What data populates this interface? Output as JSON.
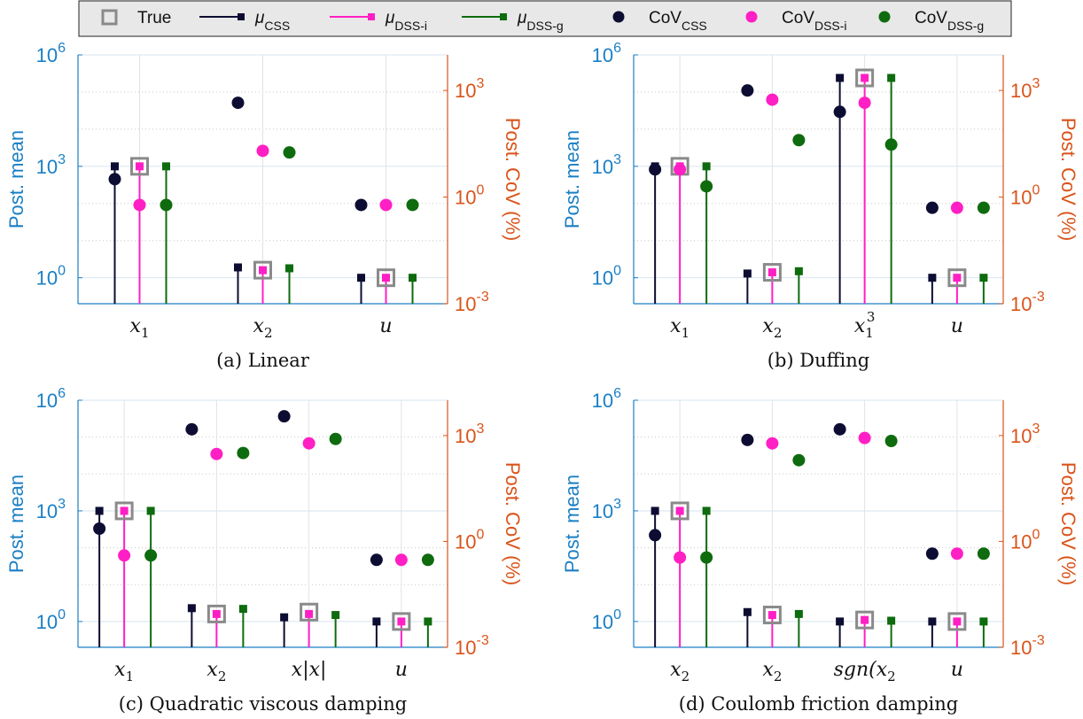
{
  "colors": {
    "left_axis": "#1a7fc4",
    "right_axis": "#d9541a",
    "css": "#0d0d33",
    "dss_i": "#ff1fc4",
    "dss_g": "#0e6b0e",
    "true_marker": "#8a8a8a",
    "legend_bg": "#e8e8e8"
  },
  "legend": {
    "entries": [
      {
        "key": "true",
        "label": "True",
        "sub": ""
      },
      {
        "key": "mu_css",
        "label": "μ",
        "sub": "CSS"
      },
      {
        "key": "mu_dssi",
        "label": "μ",
        "sub": "DSS-i"
      },
      {
        "key": "mu_dssg",
        "label": "μ",
        "sub": "DSS-g"
      },
      {
        "key": "cov_css",
        "label": "CoV",
        "sub": "CSS"
      },
      {
        "key": "cov_dssi",
        "label": "CoV",
        "sub": "DSS-i"
      },
      {
        "key": "cov_dssg",
        "label": "CoV",
        "sub": "DSS-g"
      }
    ]
  },
  "axis_text": {
    "ylabel_left": "Post. mean",
    "ylabel_right": "Post. CoV (%)",
    "left_ticks": [
      {
        "base": "10",
        "exp": "0",
        "value": 1
      },
      {
        "base": "10",
        "exp": "3",
        "value": 1000
      },
      {
        "base": "10",
        "exp": "6",
        "value": 1000000
      }
    ],
    "right_ticks": [
      {
        "base": "10",
        "exp": "-3",
        "value": 0.001
      },
      {
        "base": "10",
        "exp": "0",
        "value": 1
      },
      {
        "base": "10",
        "exp": "3",
        "value": 1000
      }
    ]
  },
  "chart_data": [
    {
      "type": "stem-scatter",
      "title": "(a) Linear",
      "categories": [
        {
          "base": "x",
          "sub": "1",
          "sup": ""
        },
        {
          "base": "x",
          "sub": "2",
          "sup": ""
        },
        {
          "base": "u",
          "sub": "",
          "sup": ""
        }
      ],
      "ylim_left": [
        0.2,
        1000000
      ],
      "ylim_right": [
        0.001,
        10000
      ],
      "yscale": "log",
      "true_values": [
        1000,
        1.6,
        1
      ],
      "mean": {
        "CSS": [
          1000,
          1.9,
          1
        ],
        "DSS-i": [
          1000,
          1.6,
          1
        ],
        "DSS-g": [
          1000,
          1.8,
          1
        ]
      },
      "cov": {
        "CSS": [
          3.2,
          450,
          0.6
        ],
        "DSS-i": [
          0.6,
          20,
          0.6
        ],
        "DSS-g": [
          0.6,
          18,
          0.6
        ]
      }
    },
    {
      "type": "stem-scatter",
      "title": "(b) Duffing",
      "categories": [
        {
          "base": "x",
          "sub": "1",
          "sup": ""
        },
        {
          "base": "x",
          "sub": "2",
          "sup": ""
        },
        {
          "base": "x",
          "sub": "1",
          "sup": "3"
        },
        {
          "base": "u",
          "sub": "",
          "sup": ""
        }
      ],
      "ylim_left": [
        0.2,
        1000000
      ],
      "ylim_right": [
        0.001,
        10000
      ],
      "yscale": "log",
      "true_values": [
        1000,
        1.4,
        240000,
        1
      ],
      "mean": {
        "CSS": [
          1000,
          1.3,
          240000,
          1
        ],
        "DSS-i": [
          1000,
          1.4,
          240000,
          1
        ],
        "DSS-g": [
          1000,
          1.5,
          240000,
          1
        ]
      },
      "cov": {
        "CSS": [
          6,
          1000,
          250,
          0.5
        ],
        "DSS-i": [
          6,
          550,
          450,
          0.5
        ],
        "DSS-g": [
          2,
          40,
          30,
          0.5
        ]
      }
    },
    {
      "type": "stem-scatter",
      "title": "(c) Quadratic viscous damping",
      "categories": [
        {
          "base": "x",
          "sub": "1",
          "sup": ""
        },
        {
          "base": "x",
          "sub": "2",
          "sup": ""
        },
        {
          "base": "x|x|",
          "sub": "",
          "sup": ""
        },
        {
          "base": "u",
          "sub": "",
          "sup": ""
        }
      ],
      "ylim_left": [
        0.2,
        1000000
      ],
      "ylim_right": [
        0.001,
        10000
      ],
      "yscale": "log",
      "true_values": [
        1000,
        1.6,
        1.8,
        1
      ],
      "mean": {
        "CSS": [
          1000,
          2.3,
          1.3,
          1
        ],
        "DSS-i": [
          1000,
          1.6,
          1.6,
          1
        ],
        "DSS-g": [
          1000,
          2.2,
          1.5,
          1
        ]
      },
      "cov": {
        "CSS": [
          2.3,
          1500,
          3500,
          0.3
        ],
        "DSS-i": [
          0.4,
          300,
          600,
          0.3
        ],
        "DSS-g": [
          0.4,
          320,
          800,
          0.3
        ]
      }
    },
    {
      "type": "stem-scatter",
      "title": "(d) Coulomb friction damping",
      "categories": [
        {
          "base": "x",
          "sub": "2",
          "sup": ""
        },
        {
          "base": "x",
          "sub": "2",
          "sup": ""
        },
        {
          "base": "sgn(x",
          "sub": "2",
          "sup": ""
        },
        {
          "base": "u",
          "sub": "",
          "sup": ""
        }
      ],
      "ylim_left": [
        0.2,
        1000000
      ],
      "ylim_right": [
        0.001,
        10000
      ],
      "yscale": "log",
      "true_values": [
        1000,
        1.5,
        1.1,
        1
      ],
      "mean": {
        "CSS": [
          1000,
          1.8,
          1,
          1
        ],
        "DSS-i": [
          1000,
          1.5,
          1.1,
          1
        ],
        "DSS-g": [
          1000,
          1.6,
          1.05,
          1
        ]
      },
      "cov": {
        "CSS": [
          1.5,
          750,
          1500,
          0.45
        ],
        "DSS-i": [
          0.35,
          600,
          850,
          0.45
        ],
        "DSS-g": [
          0.35,
          200,
          700,
          0.45
        ]
      }
    }
  ]
}
